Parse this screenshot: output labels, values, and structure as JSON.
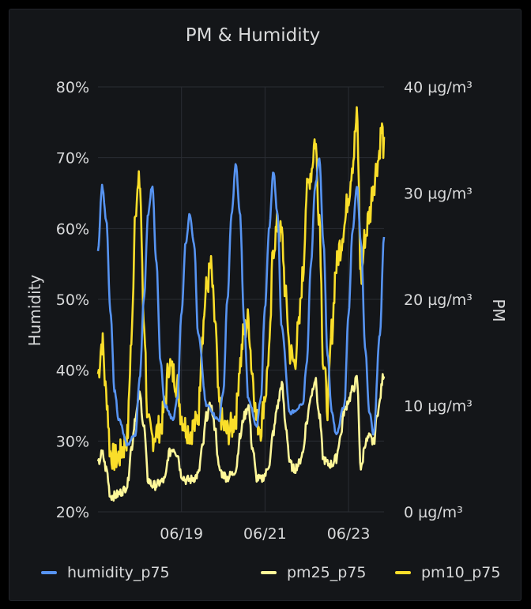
{
  "chart_data": {
    "type": "line",
    "title": "PM & Humidity",
    "colors": {
      "humidity_p75": "#5794f2",
      "pm25_p75": "#fff899",
      "pm10_p75": "#fade2a"
    },
    "x_tick_labels": [
      "06/19",
      "06/21",
      "06/23"
    ],
    "y_left": {
      "label": "Humidity",
      "ticks": [
        "20%",
        "30%",
        "40%",
        "50%",
        "60%",
        "70%",
        "80%"
      ],
      "range": [
        20,
        80
      ]
    },
    "y_right": {
      "label": "PM",
      "ticks": [
        "0 µg/m³",
        "10 µg/m³",
        "20 µg/m³",
        "30 µg/m³",
        "40 µg/m³"
      ],
      "range": [
        0,
        40
      ]
    },
    "x_range_days": [
      17.0,
      23.85
    ],
    "grid": true,
    "legend_position": "bottom",
    "series": [
      {
        "name": "humidity_p75",
        "axis": "left",
        "x": [
          17.0,
          17.1,
          17.2,
          17.3,
          17.4,
          17.5,
          17.7,
          17.9,
          18.0,
          18.1,
          18.2,
          18.3,
          18.4,
          18.5,
          18.6,
          18.8,
          18.9,
          19.0,
          19.1,
          19.2,
          19.3,
          19.4,
          19.6,
          19.9,
          20.0,
          20.1,
          20.2,
          20.3,
          20.4,
          20.5,
          20.6,
          20.8,
          20.9,
          21.0,
          21.1,
          21.2,
          21.3,
          21.4,
          21.6,
          21.9,
          22.0,
          22.1,
          22.2,
          22.3,
          22.4,
          22.5,
          22.6,
          22.7,
          22.9,
          23.0,
          23.1,
          23.2,
          23.3,
          23.4,
          23.5,
          23.6,
          23.75,
          23.85
        ],
        "y": [
          57,
          66,
          61,
          48,
          37,
          33,
          29.5,
          31,
          39,
          50,
          62,
          66,
          55,
          41,
          35,
          33,
          36,
          48,
          58,
          62,
          58,
          45,
          35,
          33,
          37,
          50,
          62,
          69,
          62,
          47,
          36,
          32,
          36,
          49,
          60,
          68,
          62,
          46,
          34,
          35,
          41,
          55,
          66,
          70,
          58,
          42,
          34,
          31,
          35,
          48,
          60,
          66,
          58,
          43,
          34,
          31,
          45,
          59
        ]
      },
      {
        "name": "pm25_p75",
        "axis": "right",
        "x": [
          17.0,
          17.1,
          17.2,
          17.3,
          17.4,
          17.5,
          17.6,
          17.7,
          17.8,
          17.9,
          18.0,
          18.1,
          18.2,
          18.3,
          18.4,
          18.5,
          18.6,
          18.7,
          18.8,
          18.9,
          19.0,
          19.1,
          19.2,
          19.3,
          19.4,
          19.5,
          19.6,
          19.7,
          19.8,
          19.9,
          20.0,
          20.1,
          20.2,
          20.3,
          20.4,
          20.5,
          20.6,
          20.7,
          20.8,
          20.9,
          21.0,
          21.1,
          21.2,
          21.3,
          21.4,
          21.5,
          21.6,
          21.7,
          21.8,
          21.9,
          22.0,
          22.1,
          22.2,
          22.3,
          22.4,
          22.5,
          22.6,
          22.7,
          22.8,
          22.9,
          23.0,
          23.1,
          23.2,
          23.3,
          23.4,
          23.5,
          23.6,
          23.7,
          23.85
        ],
        "y": [
          4.5,
          5.5,
          4.0,
          1.5,
          1.5,
          1.7,
          2.0,
          2.5,
          6.0,
          9.0,
          11.0,
          8.0,
          3.0,
          2.5,
          2.5,
          2.8,
          3.0,
          5.5,
          6.0,
          5.5,
          3.5,
          3.0,
          3.0,
          3.2,
          3.5,
          6.0,
          9.0,
          10.0,
          8.0,
          4.0,
          3.5,
          3.2,
          3.5,
          4.0,
          7.0,
          9.0,
          10.0,
          6.0,
          3.2,
          3.0,
          3.5,
          4.5,
          7.5,
          10.0,
          12.0,
          8.0,
          4.5,
          4.0,
          4.5,
          5.5,
          8.5,
          11.0,
          12.5,
          9.0,
          5.0,
          4.5,
          4.5,
          5.0,
          7.0,
          9.5,
          10.5,
          11.5,
          12.5,
          4.0,
          6.5,
          7.0,
          6.5,
          9.5,
          13.0
        ]
      },
      {
        "name": "pm10_p75",
        "axis": "right",
        "x": [
          17.0,
          17.1,
          17.2,
          17.3,
          17.4,
          17.5,
          17.6,
          17.7,
          17.8,
          17.9,
          18.0,
          18.1,
          18.2,
          18.3,
          18.4,
          18.5,
          18.6,
          18.7,
          18.8,
          18.9,
          19.0,
          19.1,
          19.2,
          19.3,
          19.4,
          19.5,
          19.6,
          19.7,
          19.8,
          19.9,
          20.0,
          20.1,
          20.2,
          20.3,
          20.4,
          20.5,
          20.6,
          20.7,
          20.8,
          20.9,
          21.0,
          21.1,
          21.2,
          21.3,
          21.4,
          21.5,
          21.6,
          21.7,
          21.8,
          21.9,
          22.0,
          22.1,
          22.2,
          22.3,
          22.4,
          22.5,
          22.6,
          22.7,
          22.8,
          22.9,
          23.0,
          23.1,
          23.2,
          23.3,
          23.4,
          23.5,
          23.6,
          23.7,
          23.8,
          23.85
        ],
        "y": [
          13.0,
          16.0,
          11.0,
          5.5,
          5.0,
          5.2,
          6.0,
          7.0,
          16.0,
          29.0,
          31.0,
          18.0,
          8.0,
          7.0,
          7.5,
          8.0,
          10.0,
          14.0,
          13.0,
          12.0,
          9.0,
          8.0,
          7.5,
          8.0,
          9.0,
          17.0,
          21.0,
          23.0,
          18.0,
          10.0,
          8.0,
          7.5,
          8.0,
          9.0,
          14.0,
          17.0,
          18.0,
          13.0,
          8.5,
          8.0,
          11.0,
          15.0,
          25.0,
          27.0,
          26.0,
          20.0,
          15.0,
          14.0,
          17.0,
          22.0,
          30.0,
          32.0,
          35.0,
          28.0,
          14.0,
          10.0,
          17.0,
          23.0,
          25.0,
          27.0,
          30.0,
          33.0,
          37.0,
          22.0,
          26.0,
          28.0,
          31.0,
          33.0,
          36.0,
          34.0
        ]
      }
    ]
  }
}
